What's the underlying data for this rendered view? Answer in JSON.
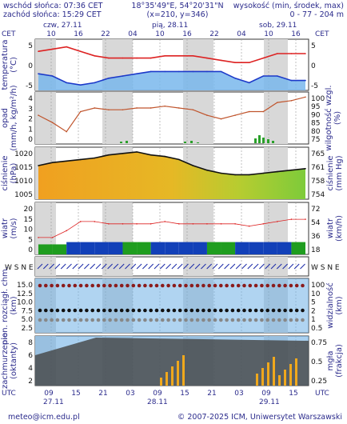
{
  "header": {
    "sunrise": "wschód słońca: 07:36 CET",
    "sunset": "zachód słońca: 15:29 CET",
    "coords": "18°35'49\"E, 54°20'31\"N",
    "grid": "(x=210, y=346)",
    "height_label": "wysokość (min, środek, max)",
    "height_value": "0 - 77 - 204 m"
  },
  "top_axis": {
    "tz_left": "CET",
    "tz_right": "CET",
    "dates": [
      "czw, 27.11",
      "pią, 28.11",
      "sob, 29.11"
    ],
    "hours": [
      "10",
      "16",
      "22",
      "04",
      "10",
      "16",
      "22",
      "04",
      "10",
      "16"
    ]
  },
  "bottom_axis": {
    "tz_left": "UTC",
    "tz_right": "UTC",
    "hours": [
      "09",
      "15",
      "21",
      "03",
      "09",
      "15",
      "21",
      "03",
      "09",
      "15"
    ],
    "dates": [
      "27.11",
      "28.11",
      "29.11"
    ]
  },
  "panels": {
    "temperature": {
      "label": "temperatura",
      "unit": "(°C)",
      "left_ticks": [
        "5",
        "0",
        "-5"
      ],
      "right_ticks": [
        "5",
        "0",
        "-5"
      ]
    },
    "precip": {
      "label": "opad",
      "unit": "(mm/h, kg/m²/h)",
      "label2": "wilgotność wzgl.",
      "unit2": "(%)",
      "left_ticks": [
        "4",
        "3",
        "2",
        "1",
        "0"
      ],
      "right_ticks": [
        "100",
        "95",
        "90",
        "85",
        "80",
        "75"
      ]
    },
    "pressure": {
      "label": "ciśnienie",
      "unit": "(hPa)",
      "label2": "ciśnienie",
      "unit2": "(mm Hg)",
      "left_ticks": [
        "1020",
        "1015",
        "1010",
        "1005"
      ],
      "right_ticks": [
        "765",
        "761",
        "758",
        "754"
      ]
    },
    "wind": {
      "label": "wiatr",
      "unit": "(m/s)",
      "label2": "wiatr",
      "unit2": "(km/h)",
      "left_ticks": [
        "20",
        "15",
        "10",
        "5",
        "0"
      ],
      "right_ticks": [
        "72",
        "54",
        "36",
        "18"
      ]
    },
    "wind_dir": {
      "compass": "W S N E",
      "compass2": "W S N E"
    },
    "visibility": {
      "label": "pion. rozciągł. chm.",
      "unit": "(km)",
      "label2": "widzialność",
      "unit2": "(km)",
      "left_ticks": [
        "15.0",
        "12.5",
        "10.0",
        "7.5",
        "5.0",
        "2.5"
      ],
      "right_ticks": [
        "100",
        "10",
        "5",
        "2",
        "1",
        "0.5"
      ]
    },
    "clouds": {
      "label": "zachmurzenie",
      "unit": "(oktanty)",
      "label2": "mgła",
      "unit2": "(frakcja)",
      "left_ticks": [
        "8",
        "6",
        "4",
        "2"
      ],
      "right_ticks": [
        "0.75",
        "0.5",
        "0.25"
      ]
    }
  },
  "footer": {
    "email": "meteo@icm.edu.pl",
    "copyright": "© 2007-2025 ICM, Uniwersytet Warszawski"
  },
  "chart_data": [
    {
      "type": "line",
      "name": "temperature",
      "ylim": [
        -5,
        5
      ],
      "x": [
        0,
        3,
        6,
        9,
        12,
        15,
        18,
        21,
        24,
        27,
        30,
        33,
        36,
        39,
        42,
        45,
        48,
        51,
        54,
        57
      ],
      "series": [
        {
          "values": [
            3.0,
            3.5,
            4.0,
            3.0,
            2.0,
            1.5,
            1.5,
            1.5,
            1.5,
            2.0,
            2.0,
            2.0,
            1.5,
            1.0,
            0.5,
            0.5,
            1.5,
            2.5,
            2.5,
            2.5
          ]
        },
        {
          "values": [
            -2.0,
            -2.5,
            -4.0,
            -4.5,
            -4.0,
            -3.0,
            -2.5,
            -2.0,
            -1.5,
            -1.5,
            -1.5,
            -1.5,
            -1.5,
            -1.5,
            -3.0,
            -4.0,
            -2.5,
            -2.5,
            -3.5,
            -3.5
          ]
        }
      ]
    },
    {
      "type": "line",
      "name": "relative_humidity",
      "ylim": [
        75,
        100
      ],
      "x": [
        0,
        3,
        6,
        9,
        12,
        15,
        18,
        21,
        24,
        27,
        30,
        33,
        36,
        39,
        42,
        45,
        48,
        51,
        54,
        57
      ],
      "values": [
        89,
        85,
        80,
        91,
        93,
        92,
        92,
        93,
        93,
        94,
        93,
        92,
        89,
        87,
        89,
        91,
        91,
        96,
        97,
        99
      ]
    },
    {
      "type": "line",
      "name": "pressure",
      "ylim": [
        1005,
        1020
      ],
      "x": [
        0,
        3,
        6,
        9,
        12,
        15,
        18,
        21,
        24,
        27,
        30,
        33,
        36,
        39,
        42,
        45,
        48,
        51,
        54,
        57
      ],
      "values": [
        1015.0,
        1016.0,
        1016.5,
        1017.0,
        1017.5,
        1018.5,
        1019.0,
        1019.5,
        1018.5,
        1018.0,
        1017.0,
        1015.0,
        1013.5,
        1012.5,
        1012.0,
        1012.0,
        1012.5,
        1013.0,
        1013.5,
        1014.0
      ]
    },
    {
      "type": "line",
      "name": "wind",
      "ylim": [
        0,
        20
      ],
      "x": [
        0,
        3,
        6,
        9,
        12,
        15,
        18,
        21,
        24,
        27,
        30,
        33,
        36,
        39,
        42,
        45,
        48,
        51,
        54,
        57
      ],
      "series": [
        {
          "values": [
            3,
            3,
            4,
            4,
            4,
            4,
            4,
            4,
            4,
            4,
            4,
            4,
            4,
            4,
            4,
            4,
            4,
            4,
            4,
            4
          ]
        },
        {
          "values": [
            6,
            6,
            9,
            13,
            13,
            12,
            12,
            12,
            12,
            13,
            12,
            12,
            12,
            12,
            12,
            11,
            12,
            13,
            14,
            14
          ]
        }
      ]
    }
  ]
}
